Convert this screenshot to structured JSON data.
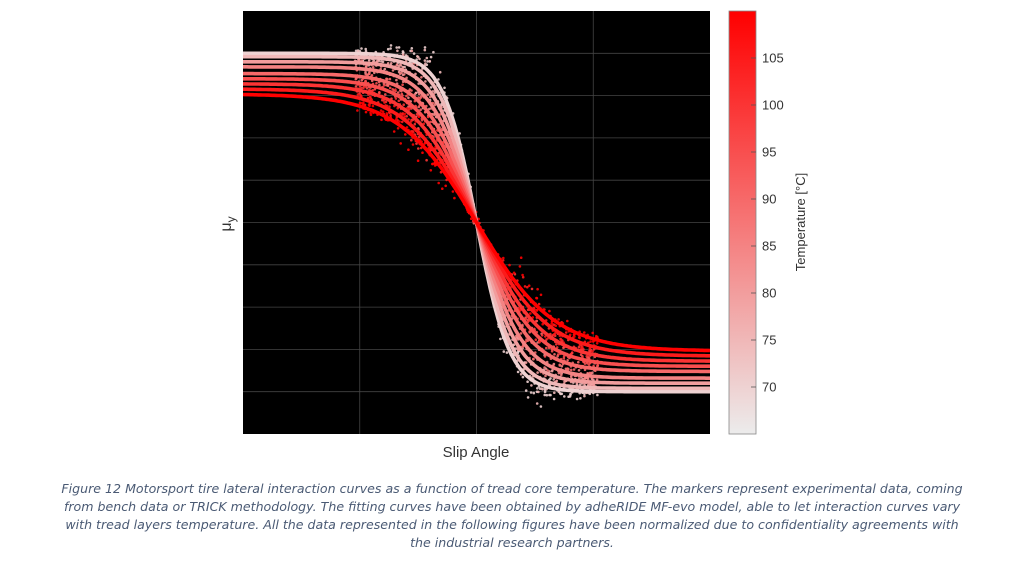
{
  "caption": "Figure 12 Motorsport tire lateral interaction curves as a function of tread core temperature. The markers represent experimental data, coming from bench data or TRICK methodology. The fitting curves have been obtained by adheRIDE MF-evo model, able to let interaction curves vary with tread layers temperature. All the data represented in the following figures have been normalized due to confidentiality agreements with the industrial research partners.",
  "chart_data": {
    "type": "scatter",
    "title": "",
    "xlabel": "Slip Angle",
    "ylabel": "μy",
    "ylabel_base": "μ",
    "ylabel_sub": "y",
    "xlim": [
      -1,
      1
    ],
    "ylim": [
      -1.25,
      1.25
    ],
    "grid": true,
    "background": "#000000",
    "gridColor": "#444444",
    "colorbar": {
      "label": "Temperature [°C]",
      "min": 65,
      "max": 110,
      "ticks": [
        70,
        75,
        80,
        85,
        90,
        95,
        100,
        105
      ],
      "colorLow": "#ececec",
      "colorHigh": "#ff0000"
    },
    "fit_curves": [
      {
        "temperature": 70,
        "peak": 1.0,
        "stiffness": 7.0
      },
      {
        "temperature": 75,
        "peak": 0.98,
        "stiffness": 6.4
      },
      {
        "temperature": 80,
        "peak": 0.95,
        "stiffness": 5.7
      },
      {
        "temperature": 85,
        "peak": 0.92,
        "stiffness": 5.1
      },
      {
        "temperature": 90,
        "peak": 0.88,
        "stiffness": 4.6
      },
      {
        "temperature": 95,
        "peak": 0.85,
        "stiffness": 4.1
      },
      {
        "temperature": 100,
        "peak": 0.82,
        "stiffness": 3.7
      },
      {
        "temperature": 105,
        "peak": 0.79,
        "stiffness": 3.3
      },
      {
        "temperature": 110,
        "peak": 0.76,
        "stiffness": 3.0
      }
    ],
    "markers": "experimental data points scattered around the fitting curves"
  }
}
